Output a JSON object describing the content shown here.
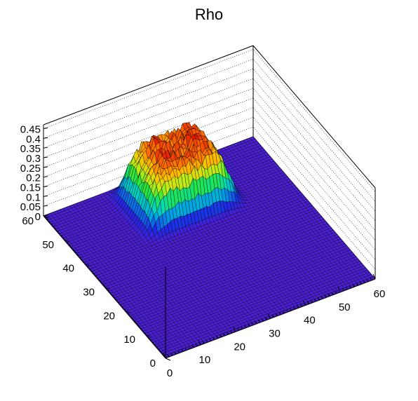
{
  "chart_data": {
    "type": "surface",
    "title": "Rho",
    "xlabel": "",
    "ylabel": "",
    "zlabel": "",
    "xlim": [
      0,
      60
    ],
    "ylim": [
      0,
      60
    ],
    "zlim": [
      0,
      0.47
    ],
    "grid_points": 64,
    "x_ticks": [
      "0",
      "10",
      "20",
      "30",
      "40",
      "50",
      "60"
    ],
    "y_ticks": [
      "0",
      "10",
      "20",
      "30",
      "40",
      "50",
      "60"
    ],
    "z_ticks": [
      "0",
      "0.05",
      "0.1",
      "0.15",
      "0.2",
      "0.25",
      "0.3",
      "0.35",
      "0.4",
      "0.45"
    ],
    "peak": {
      "x_range": [
        20,
        44
      ],
      "y_range": [
        40,
        58
      ],
      "max_value": 0.3,
      "shape": "flat-topped plateau with noisy top"
    },
    "colormap": "rainbow",
    "background_value": 0,
    "colors": {
      "base": "#4b1fd6",
      "mesh_line": "#000000",
      "frame": "#000000",
      "grid": "#000000"
    }
  }
}
